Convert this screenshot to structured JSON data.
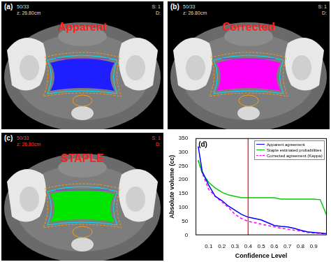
{
  "panels": [
    {
      "panel_label": "(a)",
      "title": "Apparent",
      "color": "#1e1eff",
      "top_left": [
        "50/33",
        "z: 26.80cm"
      ],
      "top_right": [
        "S: 1",
        "D:"
      ]
    },
    {
      "panel_label": "(b)",
      "title": "Corrected",
      "color": "#ff00ff",
      "top_left": [
        "50/33",
        "z: 26.80cm"
      ],
      "top_right": [
        "S: 1",
        "D:"
      ]
    },
    {
      "panel_label": "(c)",
      "title": "STAPLE",
      "color": "#00e600",
      "top_left": [
        "50/33",
        "z: 26.80cm"
      ],
      "top_right": [
        "S: 1",
        "D:"
      ]
    }
  ],
  "chart_data": {
    "type": "line",
    "panel_label": "(d)",
    "x_label": "Confidence Level",
    "y_label": "Absolute volume (cc)",
    "x": [
      0.02,
      0.05,
      0.1,
      0.15,
      0.2,
      0.25,
      0.3,
      0.35,
      0.4,
      0.45,
      0.5,
      0.55,
      0.6,
      0.65,
      0.7,
      0.75,
      0.8,
      0.85,
      0.9,
      0.95,
      1.0
    ],
    "series": [
      {
        "name": "Apparent agreement",
        "color": "#0000ff",
        "line_style": "solid",
        "values": [
          320,
          230,
          180,
          140,
          125,
          105,
          90,
          75,
          65,
          60,
          55,
          45,
          35,
          32,
          30,
          25,
          18,
          12,
          10,
          8,
          5
        ]
      },
      {
        "name": "Staple estimated probabilities",
        "color": "#00cc00",
        "line_style": "solid",
        "values": [
          270,
          225,
          190,
          170,
          155,
          145,
          140,
          135,
          135,
          135,
          135,
          135,
          135,
          130,
          130,
          130,
          130,
          130,
          130,
          128,
          70
        ]
      },
      {
        "name": "Corrected agreement (Kappa)",
        "color": "#ff00ff",
        "line_style": "dashed",
        "values": [
          270,
          225,
          165,
          140,
          120,
          100,
          75,
          60,
          50,
          45,
          40,
          35,
          30,
          25,
          22,
          18,
          15,
          10,
          8,
          6,
          5
        ]
      }
    ],
    "xlim": [
      0,
      1
    ],
    "xticks": [
      0.1,
      0.2,
      0.3,
      0.4,
      0.5,
      0.6,
      0.7,
      0.8,
      0.9
    ],
    "ylim": [
      0,
      350
    ],
    "yticks": [
      0,
      50,
      100,
      150,
      200,
      250,
      300,
      350
    ],
    "reference_line": {
      "x": 0.4,
      "color": "#ff0000"
    },
    "grid": false,
    "legend": "upper right"
  }
}
